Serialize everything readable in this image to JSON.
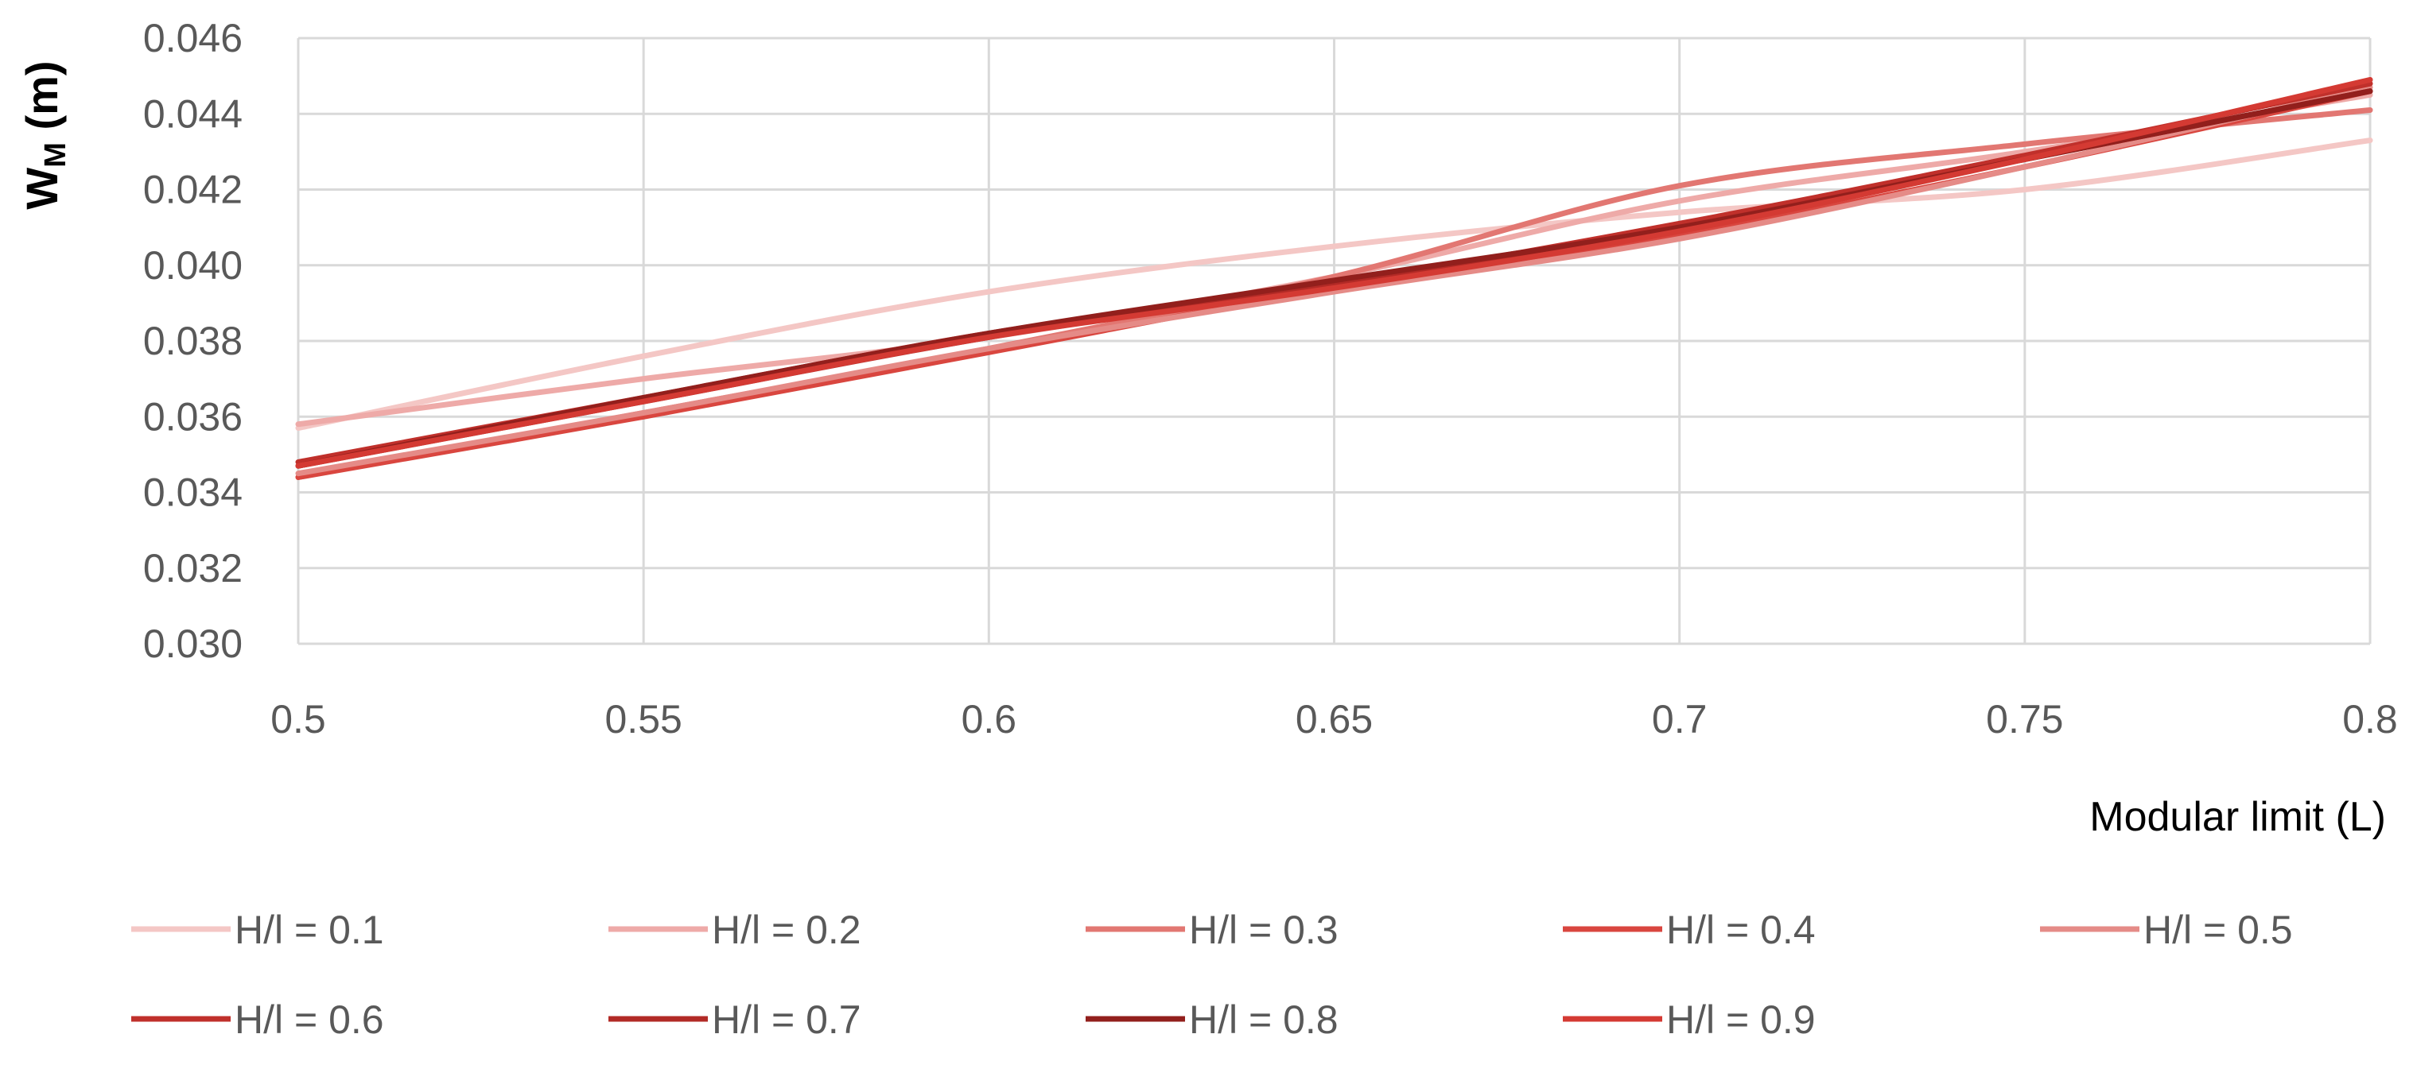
{
  "chart_data": {
    "type": "line",
    "xlabel": "Modular limit (L)",
    "ylabel_main": "W",
    "ylabel_sub": "M",
    "ylabel_unit": " (m)",
    "xlim": [
      0.5,
      0.8
    ],
    "ylim": [
      0.03,
      0.046
    ],
    "x_ticks": [
      "0.5",
      "0.55",
      "0.6",
      "0.65",
      "0.7",
      "0.75",
      "0.8"
    ],
    "y_ticks": [
      "0.030",
      "0.032",
      "0.034",
      "0.036",
      "0.038",
      "0.040",
      "0.042",
      "0.044",
      "0.046"
    ],
    "grid": true,
    "legend_position": "bottom",
    "x": [
      0.5,
      0.55,
      0.6,
      0.65,
      0.7,
      0.75,
      0.8
    ],
    "series": [
      {
        "name": "H/l = 0.1",
        "color": "#f4c7c5",
        "values": [
          0.0357,
          0.0376,
          0.0393,
          0.0405,
          0.0414,
          0.042,
          0.0433
        ]
      },
      {
        "name": "H/l = 0.2",
        "color": "#eeaaa8",
        "values": [
          0.0358,
          0.037,
          0.0381,
          0.0397,
          0.0417,
          0.043,
          0.0445
        ]
      },
      {
        "name": "H/l = 0.3",
        "color": "#e27772",
        "values": [
          0.0344,
          0.0361,
          0.0378,
          0.0397,
          0.0421,
          0.0432,
          0.0441
        ]
      },
      {
        "name": "H/l = 0.4",
        "color": "#d9463f",
        "values": [
          0.0344,
          0.036,
          0.0377,
          0.0394,
          0.0408,
          0.0426,
          0.0446
        ]
      },
      {
        "name": "H/l = 0.5",
        "color": "#e58b87",
        "values": [
          0.0345,
          0.0361,
          0.0378,
          0.0393,
          0.0407,
          0.0426,
          0.0447
        ]
      },
      {
        "name": "H/l = 0.6",
        "color": "#c0302b",
        "values": [
          0.0348,
          0.0365,
          0.0382,
          0.0395,
          0.0411,
          0.0429,
          0.0448
        ]
      },
      {
        "name": "H/l = 0.7",
        "color": "#b22a26",
        "values": [
          0.0347,
          0.0364,
          0.0381,
          0.0395,
          0.041,
          0.0428,
          0.0446
        ]
      },
      {
        "name": "H/l = 0.8",
        "color": "#921f1c",
        "values": [
          0.0347,
          0.0365,
          0.0382,
          0.0396,
          0.041,
          0.0428,
          0.0446
        ]
      },
      {
        "name": "H/l = 0.9",
        "color": "#d43a33",
        "values": [
          0.0347,
          0.0364,
          0.0381,
          0.0394,
          0.0409,
          0.0428,
          0.0449
        ]
      }
    ]
  }
}
